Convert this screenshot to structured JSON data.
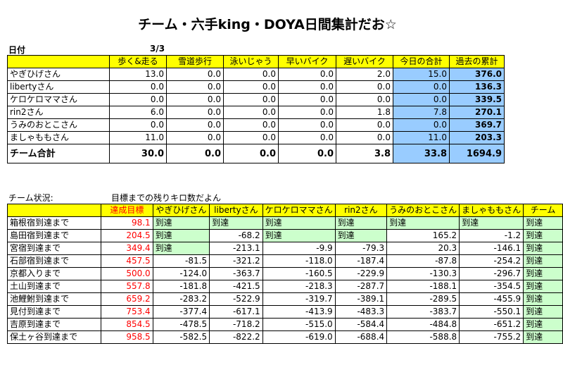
{
  "title": "チーム・六手king・DOYA日間集計だお☆",
  "date_label": "日付",
  "date_value": "3/3",
  "daily": {
    "headers": [
      "歩く&走る",
      "雪道歩行",
      "泳いじゃう",
      "早いバイク",
      "遅いバイク",
      "今日の合計",
      "過去の累計"
    ],
    "rows": [
      {
        "name": "やぎひげさん",
        "values": [
          "13.0",
          "0.0",
          "0.0",
          "0.0",
          "2.0",
          "15.0",
          "376.0"
        ]
      },
      {
        "name": "libertyさん",
        "values": [
          "0.0",
          "0.0",
          "0.0",
          "0.0",
          "0.0",
          "0.0",
          "136.3"
        ]
      },
      {
        "name": "ケロケロママさん",
        "values": [
          "0.0",
          "0.0",
          "0.0",
          "0.0",
          "0.0",
          "0.0",
          "339.5"
        ]
      },
      {
        "name": "rin2さん",
        "values": [
          "6.0",
          "0.0",
          "0.0",
          "0.0",
          "1.8",
          "7.8",
          "270.1"
        ]
      },
      {
        "name": "うみのおとこさん",
        "values": [
          "0.0",
          "0.0",
          "0.0",
          "0.0",
          "0.0",
          "0.0",
          "369.7"
        ]
      },
      {
        "name": "ましゃももさん",
        "values": [
          "11.0",
          "0.0",
          "0.0",
          "0.0",
          "0.0",
          "11.0",
          "203.3"
        ]
      }
    ],
    "total": {
      "name": "チーム合計",
      "values": [
        "30.0",
        "0.0",
        "0.0",
        "0.0",
        "3.8",
        "33.8",
        "1694.9"
      ]
    }
  },
  "status_label": "チーム状況:",
  "status_caption": "目標までの残りキロ数だよん",
  "remaining": {
    "headers": [
      "達成目標",
      "やぎひげさん",
      "libertyさん",
      "ケロケロママさん",
      "rin2さん",
      "うみのおとこさん",
      "ましゃももさん",
      "チーム"
    ],
    "rows": [
      {
        "name": "箱根宿到達まで",
        "goal": "98.1",
        "values": [
          "到達",
          "到達",
          "到達",
          "到達",
          "到達",
          "到達",
          "到達"
        ]
      },
      {
        "name": "島田宿到達まで",
        "goal": "204.5",
        "values": [
          "到達",
          "-68.2",
          "到達",
          "到達",
          "165.2",
          "-1.2",
          "到達"
        ]
      },
      {
        "name": "宮宿到達まで",
        "goal": "349.4",
        "values": [
          "到達",
          "-213.1",
          "-9.9",
          "-79.3",
          "20.3",
          "-146.1",
          "到達"
        ]
      },
      {
        "name": "石部宿到達まで",
        "goal": "457.5",
        "values": [
          "-81.5",
          "-321.2",
          "-118.0",
          "-187.4",
          "-87.8",
          "-254.2",
          "到達"
        ]
      },
      {
        "name": "京都入りまで",
        "goal": "500.0",
        "values": [
          "-124.0",
          "-363.7",
          "-160.5",
          "-229.9",
          "-130.3",
          "-296.7",
          "到達"
        ]
      },
      {
        "name": "土山到達まで",
        "goal": "557.8",
        "values": [
          "-181.8",
          "-421.5",
          "-218.3",
          "-287.7",
          "-188.1",
          "-354.5",
          "到達"
        ]
      },
      {
        "name": "池鯉鮒到達まで",
        "goal": "659.2",
        "values": [
          "-283.2",
          "-522.9",
          "-319.7",
          "-389.1",
          "-289.5",
          "-455.9",
          "到達"
        ]
      },
      {
        "name": "見付到達まで",
        "goal": "753.4",
        "values": [
          "-377.4",
          "-617.1",
          "-413.9",
          "-483.3",
          "-383.7",
          "-550.1",
          "到達"
        ]
      },
      {
        "name": "吉原到達まで",
        "goal": "854.5",
        "values": [
          "-478.5",
          "-718.2",
          "-515.0",
          "-584.4",
          "-484.8",
          "-651.2",
          "到達"
        ]
      },
      {
        "name": "保土ヶ谷到達まで",
        "goal": "958.5",
        "values": [
          "-582.5",
          "-822.2",
          "-619.0",
          "-688.4",
          "-588.8",
          "-755.2",
          "到達"
        ]
      }
    ]
  },
  "colors": {
    "header_yellow": "#ffff00",
    "total_blue": "#99ccff",
    "reached_green": "#ccffcc",
    "goal_red": "#ff0000"
  }
}
